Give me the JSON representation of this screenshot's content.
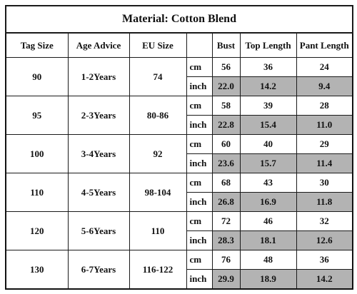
{
  "title": "Material: Cotton Blend",
  "headers": {
    "tag_size": "Tag Size",
    "age_advice": "Age Advice",
    "eu_size": "EU Size",
    "unit": "",
    "bust": "Bust",
    "top_length": "Top Length",
    "pant_length": "Pant Length"
  },
  "rows": [
    {
      "tag": "90",
      "age": "1-2Years",
      "eu": "74",
      "cm": {
        "unit": "cm",
        "bust": "56",
        "top": "36",
        "pant": "24"
      },
      "inch": {
        "unit": "inch",
        "bust": "22.0",
        "top": "14.2",
        "pant": "9.4"
      }
    },
    {
      "tag": "95",
      "age": "2-3Years",
      "eu": "80-86",
      "cm": {
        "unit": "cm",
        "bust": "58",
        "top": "39",
        "pant": "28"
      },
      "inch": {
        "unit": "inch",
        "bust": "22.8",
        "top": "15.4",
        "pant": "11.0"
      }
    },
    {
      "tag": "100",
      "age": "3-4Years",
      "eu": "92",
      "cm": {
        "unit": "cm",
        "bust": "60",
        "top": "40",
        "pant": "29"
      },
      "inch": {
        "unit": "inch",
        "bust": "23.6",
        "top": "15.7",
        "pant": "11.4"
      }
    },
    {
      "tag": "110",
      "age": "4-5Years",
      "eu": "98-104",
      "cm": {
        "unit": "cm",
        "bust": "68",
        "top": "43",
        "pant": "30"
      },
      "inch": {
        "unit": "inch",
        "bust": "26.8",
        "top": "16.9",
        "pant": "11.8"
      }
    },
    {
      "tag": "120",
      "age": "5-6Years",
      "eu": "110",
      "cm": {
        "unit": "cm",
        "bust": "72",
        "top": "46",
        "pant": "32"
      },
      "inch": {
        "unit": "inch",
        "bust": "28.3",
        "top": "18.1",
        "pant": "12.6"
      }
    },
    {
      "tag": "130",
      "age": "6-7Years",
      "eu": "116-122",
      "cm": {
        "unit": "cm",
        "bust": "76",
        "top": "48",
        "pant": "36"
      },
      "inch": {
        "unit": "inch",
        "bust": "29.9",
        "top": "18.9",
        "pant": "14.2"
      }
    }
  ],
  "colors": {
    "border": "#1a1a1a",
    "inch_fill": "#b3b3b3",
    "background": "#ffffff"
  }
}
